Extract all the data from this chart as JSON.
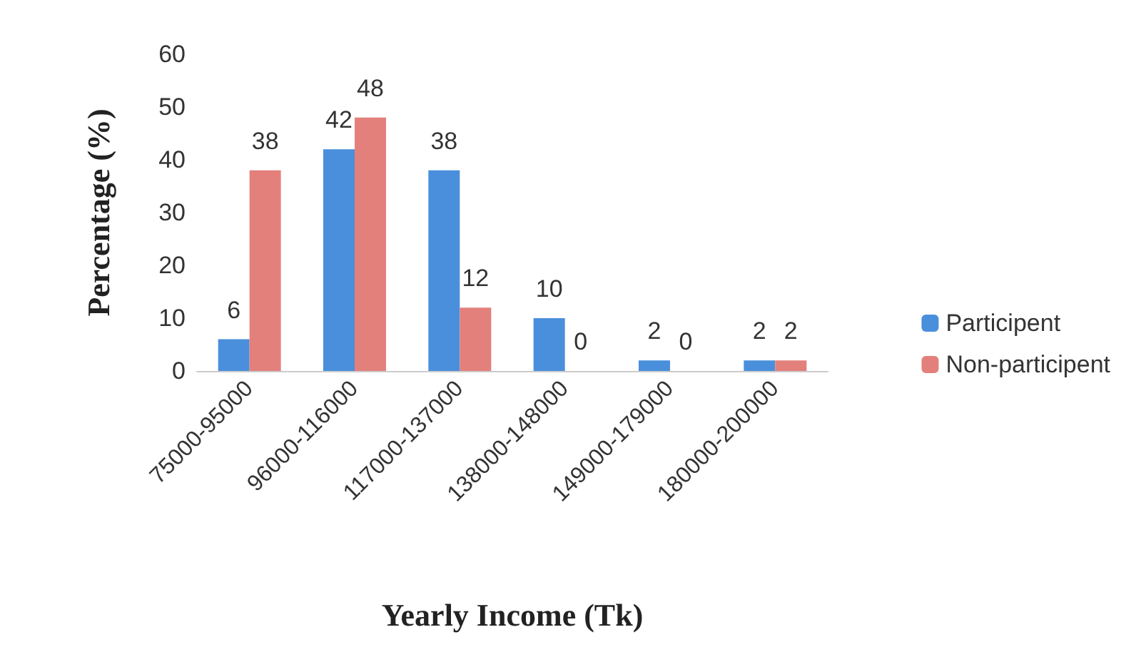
{
  "chart_data": {
    "type": "bar",
    "xlabel": "Yearly Income (Tk)",
    "ylabel": "Percentage (%)",
    "categories": [
      "75000-95000",
      "96000-116000",
      "117000-137000",
      "138000-148000",
      "149000-179000",
      "180000-200000"
    ],
    "series": [
      {
        "name": "Participent",
        "color": "#4a8fdb",
        "values": [
          6,
          42,
          38,
          10,
          2,
          2
        ]
      },
      {
        "name": "Non-participent",
        "color": "#e3807c",
        "values": [
          38,
          48,
          12,
          0,
          0,
          2
        ]
      }
    ],
    "ylim": [
      0,
      60
    ],
    "yticks": [
      0,
      10,
      20,
      30,
      40,
      50,
      60
    ],
    "grid": false,
    "legend": "right",
    "data_labels": true
  }
}
